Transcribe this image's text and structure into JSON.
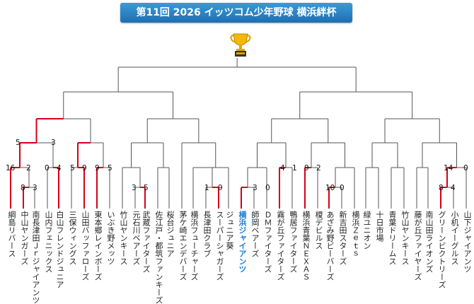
{
  "title": "第11回 2026 イッツコム少年野球 横浜絆杯",
  "trophy_icon": "trophy-icon",
  "colors": {
    "banner": "#2b86c9",
    "winner_line": "#d4001a",
    "line": "#555555",
    "highlight_team": "#1a7fd6"
  },
  "teams": [
    {
      "name": "綱島リバース",
      "highlight": false
    },
    {
      "name": "中山ヤンガーズ",
      "highlight": false
    },
    {
      "name": "南長津田Ｊｒジャイアンツ",
      "highlight": false
    },
    {
      "name": "山内フェニックス",
      "highlight": false
    },
    {
      "name": "白山フレンドジュニア",
      "highlight": false
    },
    {
      "name": "三保ウィングス",
      "highlight": false
    },
    {
      "name": "山田バッファローズ",
      "highlight": false
    },
    {
      "name": "東本郷レインボーズ",
      "highlight": false
    },
    {
      "name": "いぶき野メッツ",
      "highlight": false
    },
    {
      "name": "竹山ヤンキース",
      "highlight": false
    },
    {
      "name": "元石川ベアーズ",
      "highlight": false
    },
    {
      "name": "武蔵ファイターズ",
      "highlight": false
    },
    {
      "name": "佐江戸・都筑ファンキーズ",
      "highlight": false
    },
    {
      "name": "桜台ジュニア",
      "highlight": false
    },
    {
      "name": "茅ケ崎エンデバーズ",
      "highlight": false
    },
    {
      "name": "横浜フューチャーズ",
      "highlight": false
    },
    {
      "name": "長津田クラブ",
      "highlight": false
    },
    {
      "name": "スーパーシャガーズ",
      "highlight": false
    },
    {
      "name": "ジュニア葵",
      "highlight": false
    },
    {
      "name": "横浜ジャイアンツ",
      "highlight": true
    },
    {
      "name": "師岡ベアーズ",
      "highlight": false
    },
    {
      "name": "ＤＭファイターズ",
      "highlight": false
    },
    {
      "name": "霧が丘ファイターズ",
      "highlight": false
    },
    {
      "name": "鴨居ファイターズ",
      "highlight": false
    },
    {
      "name": "横浜青葉ＮＥＸＡＳ",
      "highlight": false
    },
    {
      "name": "榎デビルス",
      "highlight": false
    },
    {
      "name": "あざみ野ビーバーズ",
      "highlight": false
    },
    {
      "name": "新吉田スターズ",
      "highlight": false
    },
    {
      "name": "横浜Ｚｅｔｓ",
      "highlight": false
    },
    {
      "name": "緑ユニオン",
      "highlight": false
    },
    {
      "name": "十日市場",
      "highlight": false
    },
    {
      "name": "青葉ドリームス",
      "highlight": false
    },
    {
      "name": "竹山ヤンキース",
      "highlight": false
    },
    {
      "name": "藤が丘ファイヤーズ",
      "highlight": false
    },
    {
      "name": "南山田ライオンズ",
      "highlight": false
    },
    {
      "name": "グリーンビクトリーズ",
      "highlight": false
    },
    {
      "name": "小机イーグルス",
      "highlight": false
    },
    {
      "name": "山下ジャイアンツ",
      "highlight": false
    }
  ],
  "scores": [
    "16",
    "2",
    "8",
    "3",
    "0",
    "4",
    "5",
    "3",
    "5",
    "9",
    "9",
    "5",
    "3",
    "5",
    "1",
    "9",
    "3",
    "0",
    "4",
    "1",
    "9",
    "2",
    "10",
    "0",
    "14",
    "0",
    "8",
    "4"
  ]
}
